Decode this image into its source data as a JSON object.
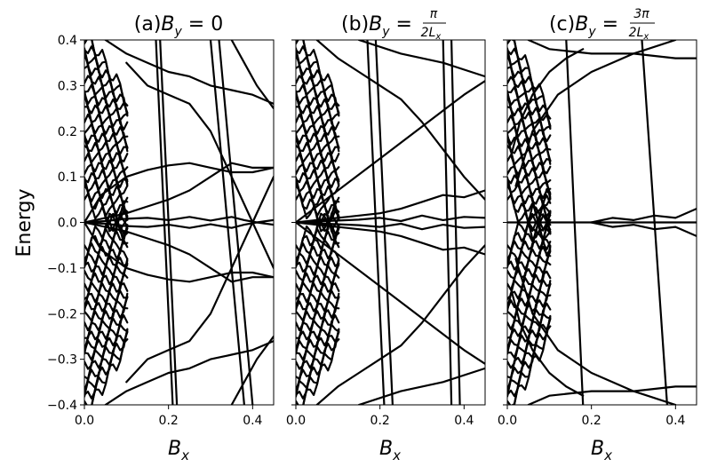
{
  "chart_data": [
    {
      "type": "line",
      "panel": "a",
      "title": "(a)B_y = 0",
      "title_parts": {
        "prefix": "(a)",
        "var": "B",
        "sub": "y",
        "eq": " = 0"
      },
      "xlabel": "B_x",
      "ylabel": "Energy",
      "xlim": [
        0.0,
        0.45
      ],
      "ylim": [
        -0.4,
        0.4
      ],
      "xticks": [
        "0.0",
        "0.2",
        "0.4"
      ],
      "xtick_values": [
        0.0,
        0.2,
        0.4
      ],
      "yticks": [
        "0.4",
        "0.3",
        "0.2",
        "0.1",
        "0.0",
        "−0.1",
        "−0.2",
        "−0.3",
        "−0.4"
      ],
      "ytick_values": [
        0.4,
        0.3,
        0.2,
        0.1,
        0.0,
        -0.1,
        -0.2,
        -0.3,
        -0.4
      ],
      "grid": false,
      "series": [
        {
          "x": [
            0.0,
            0.04,
            0.1,
            0.15,
            0.2,
            0.25,
            0.3,
            0.35,
            0.4,
            0.45
          ],
          "y": [
            0.0,
            0.06,
            0.1,
            0.115,
            0.125,
            0.13,
            0.12,
            0.11,
            0.11,
            0.12
          ]
        },
        {
          "x": [
            0.0,
            0.04,
            0.1,
            0.15,
            0.2,
            0.25,
            0.3,
            0.35,
            0.4,
            0.45
          ],
          "y": [
            0.0,
            -0.06,
            -0.1,
            -0.115,
            -0.125,
            -0.13,
            -0.12,
            -0.11,
            -0.11,
            -0.12
          ]
        },
        {
          "x": [
            0.0,
            0.05,
            0.1,
            0.15,
            0.2,
            0.25,
            0.3,
            0.35,
            0.4,
            0.45
          ],
          "y": [
            0.0,
            0.01,
            0.02,
            0.035,
            0.05,
            0.07,
            0.1,
            0.13,
            0.12,
            0.12
          ]
        },
        {
          "x": [
            0.0,
            0.05,
            0.1,
            0.15,
            0.2,
            0.25,
            0.3,
            0.35,
            0.4,
            0.45
          ],
          "y": [
            0.0,
            -0.01,
            -0.02,
            -0.035,
            -0.05,
            -0.07,
            -0.1,
            -0.13,
            -0.12,
            -0.12
          ]
        },
        {
          "x": [
            0.0,
            0.05,
            0.1,
            0.15,
            0.2,
            0.25,
            0.3,
            0.35,
            0.38,
            0.41,
            0.45
          ],
          "y": [
            0.0,
            0.003,
            0.008,
            0.01,
            0.005,
            0.012,
            0.004,
            0.012,
            0.005,
            0.0,
            0.005
          ]
        },
        {
          "x": [
            0.0,
            0.05,
            0.1,
            0.15,
            0.2,
            0.25,
            0.3,
            0.35,
            0.38,
            0.41,
            0.45
          ],
          "y": [
            0.0,
            -0.003,
            -0.008,
            -0.01,
            -0.005,
            -0.012,
            -0.004,
            -0.012,
            -0.005,
            0.0,
            -0.005
          ]
        },
        {
          "x": [
            0.17,
            0.18,
            0.19,
            0.2,
            0.21
          ],
          "y": [
            0.4,
            0.2,
            0.0,
            -0.2,
            -0.4
          ]
        },
        {
          "x": [
            0.18,
            0.19,
            0.2,
            0.21,
            0.22
          ],
          "y": [
            0.4,
            0.2,
            0.0,
            -0.2,
            -0.4
          ]
        },
        {
          "x": [
            0.3,
            0.32,
            0.34,
            0.36,
            0.38
          ],
          "y": [
            0.4,
            0.2,
            0.0,
            -0.2,
            -0.4
          ]
        },
        {
          "x": [
            0.32,
            0.34,
            0.36,
            0.38,
            0.4
          ],
          "y": [
            0.4,
            0.2,
            0.0,
            -0.2,
            -0.4
          ]
        },
        {
          "x": [
            0.1,
            0.15,
            0.2,
            0.25,
            0.3,
            0.35,
            0.4,
            0.45
          ],
          "y": [
            0.35,
            0.3,
            0.28,
            0.26,
            0.2,
            0.1,
            0.0,
            -0.1
          ]
        },
        {
          "x": [
            0.1,
            0.15,
            0.2,
            0.25,
            0.3,
            0.35,
            0.4,
            0.45
          ],
          "y": [
            -0.35,
            -0.3,
            -0.28,
            -0.26,
            -0.2,
            -0.1,
            0.0,
            0.1
          ]
        },
        {
          "x": [
            0.05,
            0.1,
            0.15,
            0.2,
            0.25,
            0.3,
            0.35,
            0.4,
            0.45
          ],
          "y": [
            0.4,
            0.37,
            0.35,
            0.33,
            0.32,
            0.3,
            0.29,
            0.28,
            0.26
          ]
        },
        {
          "x": [
            0.05,
            0.1,
            0.15,
            0.2,
            0.25,
            0.3,
            0.35,
            0.4,
            0.45
          ],
          "y": [
            -0.4,
            -0.37,
            -0.35,
            -0.33,
            -0.32,
            -0.3,
            -0.29,
            -0.28,
            -0.26
          ]
        },
        {
          "x": [
            0.35,
            0.38,
            0.41,
            0.45
          ],
          "y": [
            0.4,
            0.35,
            0.3,
            0.25
          ]
        },
        {
          "x": [
            0.35,
            0.38,
            0.41,
            0.45
          ],
          "y": [
            -0.4,
            -0.35,
            -0.3,
            -0.25
          ]
        }
      ]
    },
    {
      "type": "line",
      "panel": "b",
      "title": "(b)B_y = π/(2L_x)",
      "title_parts": {
        "prefix": "(b)",
        "var": "B",
        "sub": "y",
        "eq": " = ",
        "frac_num": "π",
        "frac_den": "2L",
        "frac_den_sub": "x"
      },
      "xlabel": "B_x",
      "xlim": [
        0.0,
        0.45
      ],
      "ylim": [
        -0.4,
        0.4
      ],
      "xticks": [
        "0.0",
        "0.2",
        "0.4"
      ],
      "xtick_values": [
        0.0,
        0.2,
        0.4
      ],
      "grid": false,
      "series": [
        {
          "x": [
            0.0,
            0.1,
            0.2,
            0.3,
            0.4,
            0.45
          ],
          "y": [
            0.0,
            0.07,
            0.14,
            0.21,
            0.28,
            0.31
          ]
        },
        {
          "x": [
            0.0,
            0.1,
            0.2,
            0.3,
            0.4,
            0.45
          ],
          "y": [
            0.0,
            -0.07,
            -0.14,
            -0.21,
            -0.28,
            -0.31
          ]
        },
        {
          "x": [
            0.0,
            0.05,
            0.1,
            0.15,
            0.2,
            0.25,
            0.3,
            0.35,
            0.4,
            0.45
          ],
          "y": [
            0.0,
            0.005,
            0.01,
            0.015,
            0.02,
            0.03,
            0.045,
            0.06,
            0.055,
            0.07
          ]
        },
        {
          "x": [
            0.0,
            0.05,
            0.1,
            0.15,
            0.2,
            0.25,
            0.3,
            0.35,
            0.4,
            0.45
          ],
          "y": [
            0.0,
            -0.005,
            -0.01,
            -0.015,
            -0.02,
            -0.03,
            -0.045,
            -0.06,
            -0.055,
            -0.07
          ]
        },
        {
          "x": [
            0.0,
            0.05,
            0.1,
            0.15,
            0.2,
            0.25,
            0.3,
            0.35,
            0.4,
            0.45
          ],
          "y": [
            0.0,
            0.002,
            0.004,
            0.006,
            0.01,
            0.003,
            0.015,
            0.005,
            0.012,
            0.01
          ]
        },
        {
          "x": [
            0.0,
            0.05,
            0.1,
            0.15,
            0.2,
            0.25,
            0.3,
            0.35,
            0.4,
            0.45
          ],
          "y": [
            0.0,
            -0.002,
            -0.004,
            -0.006,
            -0.01,
            -0.003,
            -0.015,
            -0.005,
            -0.012,
            -0.01
          ]
        },
        {
          "x": [
            0.17,
            0.18,
            0.19,
            0.2,
            0.21
          ],
          "y": [
            0.4,
            0.2,
            0.0,
            -0.2,
            -0.4
          ]
        },
        {
          "x": [
            0.19,
            0.2,
            0.21,
            0.22,
            0.23
          ],
          "y": [
            0.4,
            0.2,
            0.0,
            -0.2,
            -0.4
          ]
        },
        {
          "x": [
            0.35,
            0.355,
            0.36,
            0.365,
            0.37
          ],
          "y": [
            0.4,
            0.2,
            0.0,
            -0.2,
            -0.4
          ]
        },
        {
          "x": [
            0.37,
            0.375,
            0.38,
            0.385,
            0.39
          ],
          "y": [
            0.4,
            0.2,
            0.0,
            -0.2,
            -0.4
          ]
        },
        {
          "x": [
            0.05,
            0.1,
            0.15,
            0.2,
            0.25,
            0.3,
            0.35,
            0.4,
            0.45
          ],
          "y": [
            0.4,
            0.36,
            0.33,
            0.3,
            0.27,
            0.22,
            0.16,
            0.1,
            0.05
          ]
        },
        {
          "x": [
            0.05,
            0.1,
            0.15,
            0.2,
            0.25,
            0.3,
            0.35,
            0.4,
            0.45
          ],
          "y": [
            -0.4,
            -0.36,
            -0.33,
            -0.3,
            -0.27,
            -0.22,
            -0.16,
            -0.1,
            -0.05
          ]
        },
        {
          "x": [
            0.15,
            0.25,
            0.35,
            0.45
          ],
          "y": [
            0.4,
            0.37,
            0.35,
            0.32
          ]
        },
        {
          "x": [
            0.15,
            0.25,
            0.35,
            0.45
          ],
          "y": [
            -0.4,
            -0.37,
            -0.35,
            -0.32
          ]
        }
      ]
    },
    {
      "type": "line",
      "panel": "c",
      "title": "(c)B_y = 3π/(2L_x)",
      "title_parts": {
        "prefix": "(c)",
        "var": "B",
        "sub": "y",
        "eq": " = ",
        "frac_num": "3π",
        "frac_den": "2L",
        "frac_den_sub": "x"
      },
      "xlabel": "B_x",
      "xlim": [
        0.0,
        0.45
      ],
      "ylim": [
        -0.4,
        0.4
      ],
      "xticks": [
        "0.0",
        "0.2",
        "0.4"
      ],
      "xtick_values": [
        0.0,
        0.2,
        0.4
      ],
      "grid": false,
      "series": [
        {
          "x": [
            0.0,
            0.1,
            0.2,
            0.3,
            0.38,
            0.45
          ],
          "y": [
            0.0,
            0.0,
            0.0,
            0.0,
            0.0,
            0.0
          ]
        },
        {
          "x": [
            0.2,
            0.25,
            0.3,
            0.35,
            0.4,
            0.45
          ],
          "y": [
            0.0,
            0.01,
            0.005,
            0.015,
            0.01,
            0.03
          ]
        },
        {
          "x": [
            0.2,
            0.25,
            0.3,
            0.35,
            0.4,
            0.45
          ],
          "y": [
            0.0,
            -0.01,
            -0.005,
            -0.015,
            -0.01,
            -0.03
          ]
        },
        {
          "x": [
            0.01,
            0.03,
            0.06,
            0.1,
            0.14,
            0.18
          ],
          "y": [
            0.15,
            0.22,
            0.28,
            0.33,
            0.36,
            0.38
          ]
        },
        {
          "x": [
            0.01,
            0.03,
            0.06,
            0.1,
            0.14,
            0.18
          ],
          "y": [
            -0.15,
            -0.22,
            -0.28,
            -0.33,
            -0.36,
            -0.38
          ]
        },
        {
          "x": [
            0.14,
            0.15,
            0.16,
            0.17,
            0.18
          ],
          "y": [
            0.4,
            0.2,
            0.0,
            -0.2,
            -0.4
          ]
        },
        {
          "x": [
            0.32,
            0.335,
            0.35,
            0.365,
            0.38
          ],
          "y": [
            0.4,
            0.2,
            0.0,
            -0.2,
            -0.4
          ]
        },
        {
          "x": [
            0.05,
            0.1,
            0.2,
            0.3,
            0.4,
            0.45
          ],
          "y": [
            0.4,
            0.38,
            0.37,
            0.37,
            0.36,
            0.36
          ]
        },
        {
          "x": [
            0.05,
            0.1,
            0.2,
            0.3,
            0.4,
            0.45
          ],
          "y": [
            -0.4,
            -0.38,
            -0.37,
            -0.37,
            -0.36,
            -0.36
          ]
        },
        {
          "x": [
            0.02,
            0.06,
            0.12,
            0.2,
            0.3,
            0.4
          ],
          "y": [
            0.08,
            0.2,
            0.28,
            0.33,
            0.37,
            0.4
          ]
        },
        {
          "x": [
            0.02,
            0.06,
            0.12,
            0.2,
            0.3,
            0.4
          ],
          "y": [
            -0.08,
            -0.2,
            -0.28,
            -0.33,
            -0.37,
            -0.4
          ]
        }
      ]
    }
  ]
}
